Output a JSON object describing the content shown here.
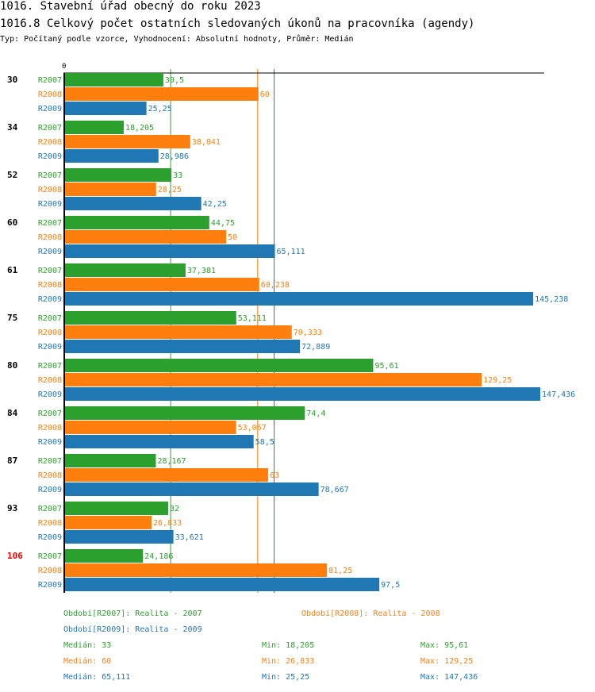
{
  "header": {
    "title": "1016. Stavební úřad obecný do roku 2023",
    "subtitle": "1016.8 Celkový počet ostatních sledovaných úkonů na pracovníka (agendy)",
    "meta": "Typ: Počítaný podle vzorce, Vyhodnocení: Absolutní hodnoty, Průměr: Medián"
  },
  "colors": {
    "R2007": "#2ca02c",
    "R2008": "#ff7f0e",
    "R2009": "#1f77b4",
    "highlight": "#ff0000"
  },
  "chart_data": {
    "type": "bar",
    "orientation": "horizontal",
    "title": "1016.8 Celkový počet ostatních sledovaných úkonů na pracovníka (agendy)",
    "x_tick_labels": [
      "0"
    ],
    "xlim": [
      0,
      150
    ],
    "categories": [
      "30",
      "34",
      "52",
      "60",
      "61",
      "75",
      "80",
      "84",
      "87",
      "93",
      "106"
    ],
    "highlighted_category": "106",
    "series": [
      {
        "name": "R2007",
        "values": [
          30.5,
          18.205,
          33,
          44.75,
          37.381,
          53.111,
          95.61,
          74.4,
          28.167,
          32,
          24.186
        ],
        "labels": [
          "30,5",
          "18,205",
          "33",
          "44,75",
          "37,381",
          "53,111",
          "95,61",
          "74,4",
          "28,167",
          "32",
          "24,186"
        ]
      },
      {
        "name": "R2008",
        "values": [
          60,
          38.841,
          28.25,
          50,
          60.238,
          70.333,
          129.25,
          53.067,
          63,
          26.833,
          81.25
        ],
        "labels": [
          "60",
          "38,841",
          "28,25",
          "50",
          "60,238",
          "70,333",
          "129,25",
          "53,067",
          "63",
          "26,833",
          "81,25"
        ]
      },
      {
        "name": "R2009",
        "values": [
          25.25,
          28.986,
          42.25,
          65.111,
          145.238,
          72.889,
          147.436,
          58.5,
          78.667,
          33.621,
          97.5
        ],
        "labels": [
          "25,25",
          "28,986",
          "42,25",
          "65,111",
          "145,238",
          "72,889",
          "147,436",
          "58,5",
          "78,667",
          "33,621",
          "97,5"
        ]
      }
    ],
    "reference_lines": [
      {
        "series": "R2007",
        "value": 33
      },
      {
        "series": "R2008",
        "value": 60
      },
      {
        "series": "R2009",
        "value": 65.111
      }
    ]
  },
  "legend": {
    "periods": [
      {
        "series": "R2007",
        "text": "Období[R2007]: Realita - 2007"
      },
      {
        "series": "R2008",
        "text": "Období[R2008]: Realita - 2008"
      },
      {
        "series": "R2009",
        "text": "Období[R2009]: Realita - 2009"
      }
    ],
    "stats": [
      {
        "series": "R2007",
        "median": "Medián: 33",
        "min": "Min: 18,205",
        "max": "Max: 95,61"
      },
      {
        "series": "R2008",
        "median": "Medián: 60",
        "min": "Min: 26,833",
        "max": "Max: 129,25"
      },
      {
        "series": "R2009",
        "median": "Medián: 65,111",
        "min": "Min: 25,25",
        "max": "Max: 147,436"
      }
    ]
  }
}
